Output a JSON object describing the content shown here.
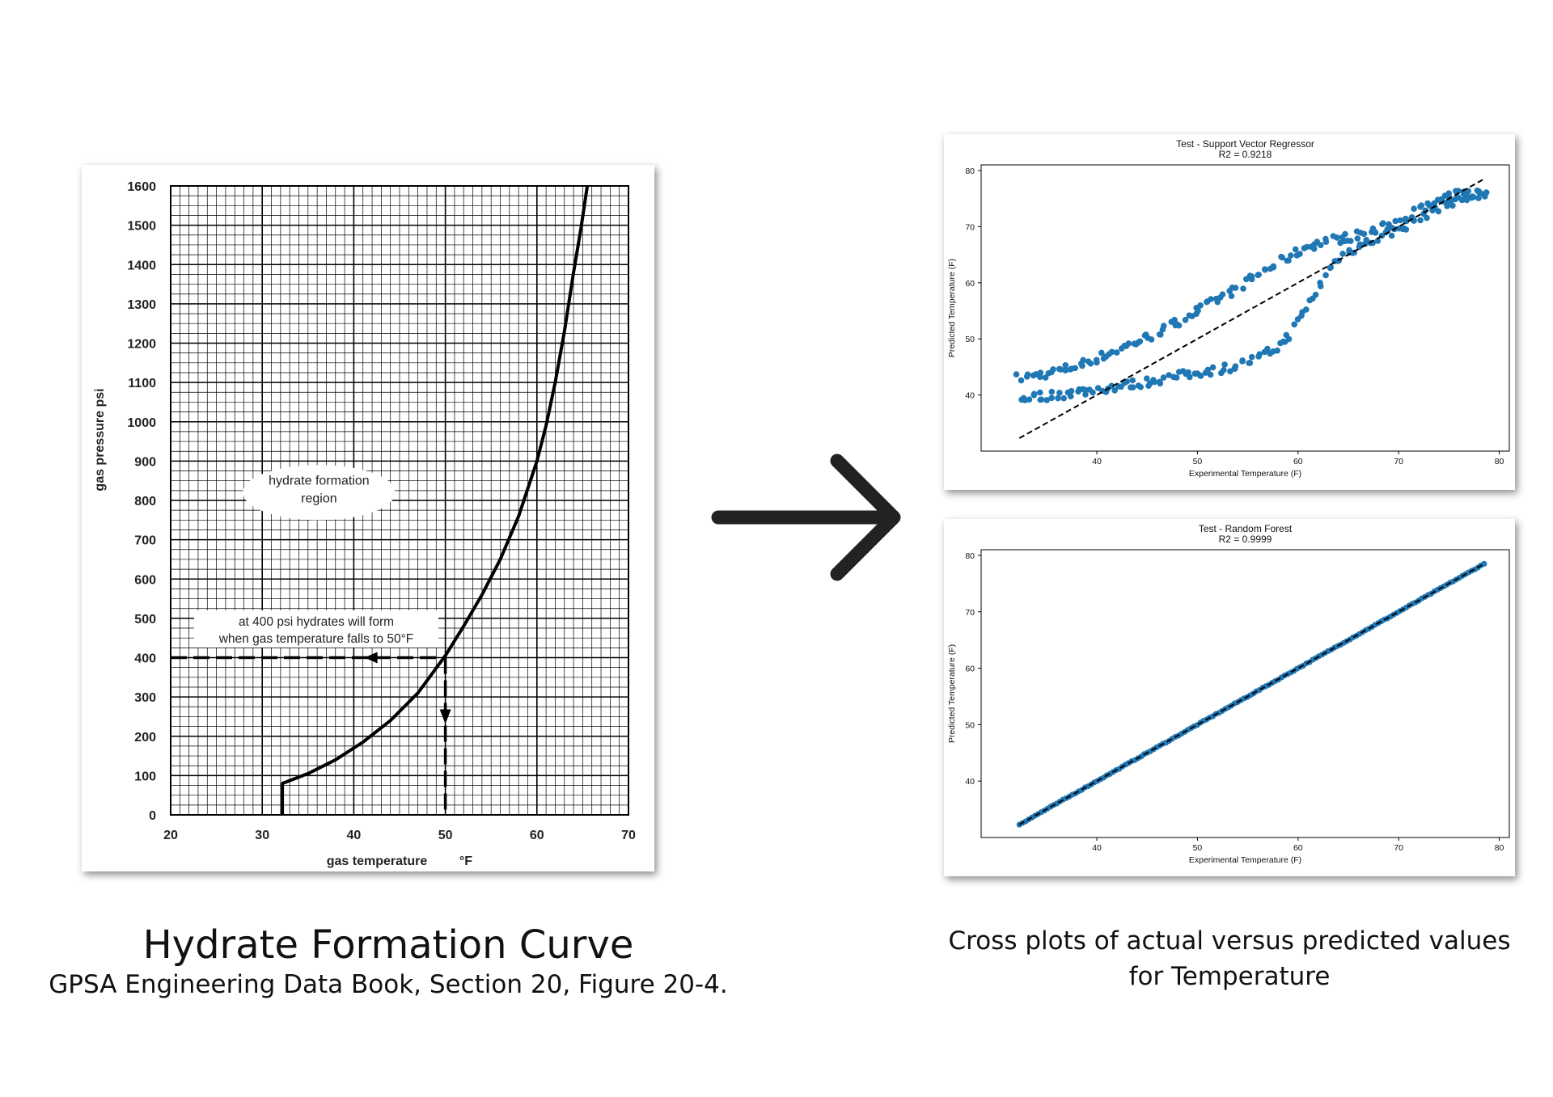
{
  "left_figure": {
    "caption_title": "Hydrate Formation Curve",
    "caption_subtitle": "GPSA Engineering Data Book, Section 20, Figure 20-4."
  },
  "right_figure": {
    "caption_line1": "Cross plots of actual versus predicted values",
    "caption_line2": "for Temperature"
  },
  "arrow": {
    "icon": "right-arrow-icon",
    "color": "#222222"
  },
  "chart_data": [
    {
      "id": "hydrate",
      "type": "line",
      "xlabel": "gas temperature",
      "xunit": "°F",
      "ylabel": "gas pressure psi",
      "xlim": [
        20,
        70
      ],
      "ylim": [
        0,
        1600
      ],
      "xticks": [
        20,
        30,
        40,
        50,
        60,
        70
      ],
      "yticks": [
        0,
        100,
        200,
        300,
        400,
        500,
        600,
        700,
        800,
        900,
        1000,
        1100,
        1200,
        1300,
        1400,
        1500,
        1600
      ],
      "grid": true,
      "curve": {
        "x": [
          32.2,
          32.2,
          35,
          38,
          41,
          44,
          47,
          50,
          52,
          54,
          56,
          58,
          60,
          61,
          62,
          63,
          64,
          64.8,
          65.5
        ],
        "y": [
          0,
          80,
          105,
          140,
          185,
          240,
          310,
          405,
          480,
          560,
          650,
          760,
          900,
          990,
          1100,
          1230,
          1380,
          1490,
          1600
        ]
      },
      "region_label_line1": "hydrate formation",
      "region_label_line2": "region",
      "annotation_line1": "at 400 psi hydrates will form",
      "annotation_line2": "when gas temperature falls to 50°F",
      "guide_point": {
        "x": 50,
        "y": 400
      }
    },
    {
      "id": "svr",
      "type": "scatter",
      "title": "Test - Support Vector Regressor",
      "subtitle": "R2 = 0.9218",
      "xlabel": "Experimental Temperature  (F)",
      "ylabel": "Predicted Temperature  (F)",
      "xlim": [
        28.5,
        81
      ],
      "ylim": [
        30,
        81
      ],
      "xticks": [
        40,
        50,
        60,
        70,
        80
      ],
      "yticks": [
        40,
        50,
        60,
        70,
        80
      ],
      "grid": false,
      "point_color": "#1f77b4",
      "reference_line": {
        "x": [
          32.3,
          78.5
        ],
        "y": [
          32.3,
          78.5
        ],
        "style": "dashed",
        "color": "#000000"
      },
      "upper_band": {
        "x": [
          32.3,
          34,
          36,
          38,
          40,
          42,
          44,
          46,
          48,
          50,
          52,
          54,
          56,
          58,
          60,
          61,
          62,
          63,
          64,
          66,
          68,
          70,
          72,
          74,
          76,
          78.5
        ],
        "y": [
          43,
          43.5,
          44.2,
          45.2,
          46.5,
          48,
          49.5,
          51,
          53,
          55,
          57,
          59,
          61.5,
          63.5,
          65.5,
          66.5,
          67,
          67.5,
          67.8,
          68.5,
          69.5,
          71,
          73,
          74.5,
          75.8,
          76
        ]
      },
      "lower_band": {
        "x": [
          32.3,
          34,
          36,
          38,
          40,
          42,
          44,
          46,
          48,
          50,
          52,
          54,
          56,
          58,
          59,
          60,
          61,
          62,
          63,
          64,
          66,
          68,
          70,
          72,
          74,
          76,
          78.5
        ],
        "y": [
          39.5,
          39.7,
          40,
          40.5,
          41,
          41.5,
          42,
          42.7,
          43.3,
          44,
          44.5,
          45.3,
          46.5,
          48.5,
          50.5,
          53,
          56,
          59,
          62,
          64.5,
          66.5,
          68,
          69.5,
          71.5,
          73.5,
          75,
          75.5
        ]
      }
    },
    {
      "id": "rf",
      "type": "scatter",
      "title": "Test - Random Forest",
      "subtitle": "R2 = 0.9999",
      "xlabel": "Experimental Temperature  (F)",
      "ylabel": "Predicted Temperature  (F)",
      "xlim": [
        28.5,
        81
      ],
      "ylim": [
        30,
        81
      ],
      "xticks": [
        40,
        50,
        60,
        70,
        80
      ],
      "yticks": [
        40,
        50,
        60,
        70,
        80
      ],
      "grid": false,
      "point_color": "#1f77b4",
      "reference_line": {
        "x": [
          32.3,
          78.5
        ],
        "y": [
          32.3,
          78.5
        ],
        "style": "dashed",
        "color": "#000000"
      },
      "points": {
        "x_start": 32.3,
        "x_end": 78.5,
        "count": 150,
        "relation": "y = x"
      }
    }
  ]
}
